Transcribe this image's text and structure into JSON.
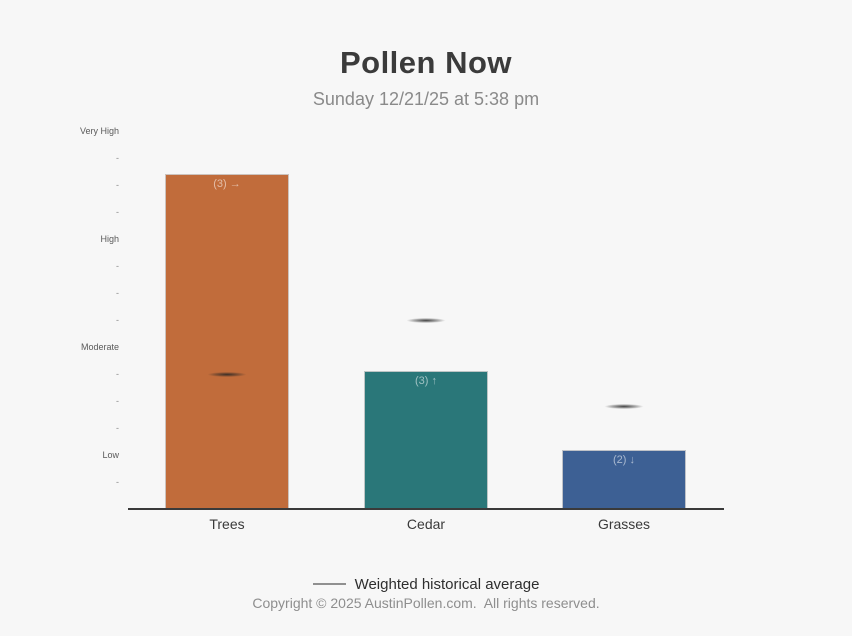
{
  "page": {
    "background": "#f7f7f7"
  },
  "header": {
    "title": "Pollen Now",
    "subtitle": "Sunday 12/21/25 at 5:38 pm"
  },
  "chart_data": {
    "type": "bar",
    "title": "Pollen Now",
    "subtitle": "Sunday 12/21/25 at 5:38 pm",
    "categories": [
      "Trees",
      "Cedar",
      "Grasses"
    ],
    "values": [
      12.4,
      5.1,
      2.2
    ],
    "bar_labels": [
      "(3) →",
      "(3) ↑",
      "(2) ↓"
    ],
    "bar_colors": [
      "#c16c3b",
      "#2a7779",
      "#3d6094"
    ],
    "historical_average": [
      5.0,
      7.0,
      3.8
    ],
    "y_axis": {
      "range": [
        0,
        14.8
      ],
      "labels": [
        {
          "text": "Very High",
          "value": 14
        },
        {
          "text": "High",
          "value": 10
        },
        {
          "text": "Moderate",
          "value": 6
        },
        {
          "text": "Low",
          "value": 2
        }
      ],
      "tick_values": [
        1,
        3,
        4,
        5,
        7,
        8,
        9,
        11,
        12,
        13
      ],
      "tick_glyph": "-",
      "grid": false
    },
    "legend": {
      "position": "bottom",
      "marker_label": "Weighted historical average"
    }
  },
  "footer": {
    "copyright": "Copyright © 2025 AustinPollen.com.  All rights reserved."
  }
}
